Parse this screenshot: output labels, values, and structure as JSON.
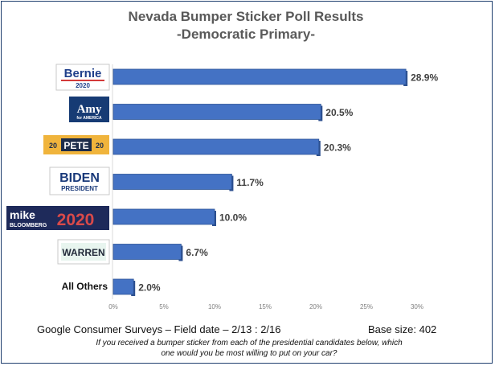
{
  "chart_data": {
    "type": "bar",
    "orientation": "horizontal",
    "title": "Nevada Bumper Sticker Poll Results",
    "subtitle": "-Democratic Primary-",
    "categories": [
      "Bernie",
      "Amy",
      "Pete",
      "Biden",
      "Mike",
      "Warren",
      "All Others"
    ],
    "values": [
      28.9,
      20.5,
      20.3,
      11.7,
      10.0,
      6.7,
      2.0
    ],
    "value_labels": [
      "28.9%",
      "20.5%",
      "20.3%",
      "11.7%",
      "10.0%",
      "6.7%",
      "2.0%"
    ],
    "xlim": [
      0,
      30
    ],
    "xticks": [
      0,
      5,
      10,
      15,
      20,
      25,
      30
    ],
    "xtick_labels": [
      "0%",
      "5%",
      "10%",
      "15%",
      "20%",
      "25%",
      "30%"
    ],
    "bar_color": "#4472c4",
    "grid": false,
    "legend": "none"
  },
  "logos": {
    "bernie": {
      "line1": "Bernie",
      "line2": "2020"
    },
    "amy": {
      "line1": "Amy",
      "line2": "for AMERICA"
    },
    "pete": {
      "left": "20",
      "mid": "PETE",
      "right": "20"
    },
    "biden": {
      "line1": "BIDEN",
      "line2": "PRESIDENT"
    },
    "mike": {
      "line1": "mike",
      "line2": "BLOOMBERG",
      "year": "2020"
    },
    "warren": {
      "line1": "WARREN"
    },
    "others": {
      "label": "All Others"
    }
  },
  "footer": {
    "source": "Google Consumer Surveys – Field date – 2/13 : 2/16",
    "base": "Base size:  402",
    "question": "If you received a bumper sticker from each of the presidential candidates below, which one would you be most willing to put on your car?"
  }
}
